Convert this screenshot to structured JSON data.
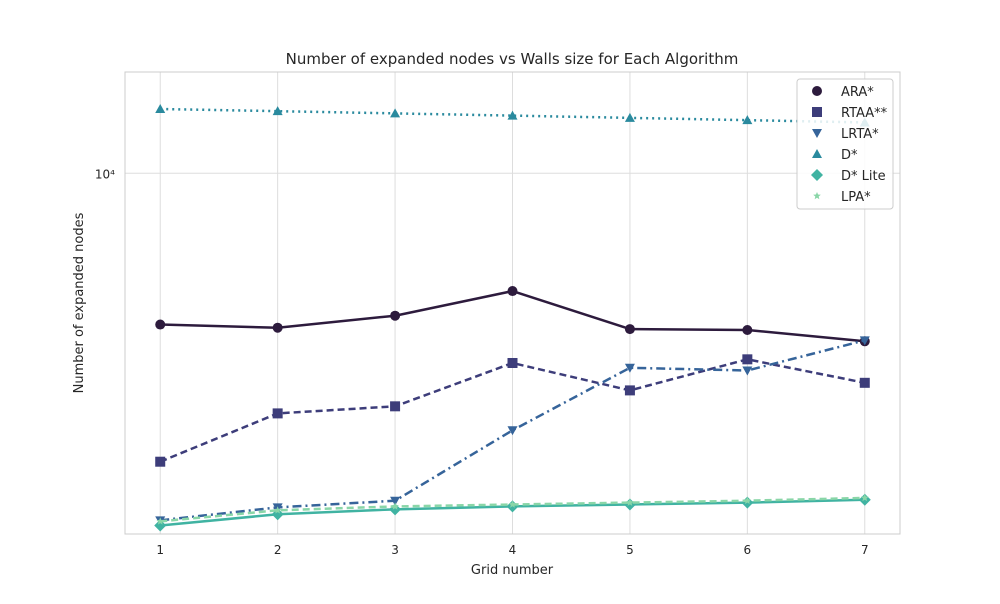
{
  "chart_data": {
    "type": "line",
    "title": "Number of expanded nodes vs Walls size for Each Algorithm",
    "xlabel": "Grid number",
    "ylabel": "Number of expanded nodes",
    "y_scale": "log",
    "y_tick_label": "10⁴",
    "x": [
      1,
      2,
      3,
      4,
      5,
      6,
      7
    ],
    "xlim": [
      0.7,
      7.3
    ],
    "ylim": [
      2200,
      15300
    ],
    "grid": true,
    "legend_position": "top-right",
    "series": [
      {
        "name": "ARA*",
        "marker": "circle",
        "dash": "solid",
        "color": "#2d1b3d",
        "values": [
          5300,
          5230,
          5500,
          6100,
          5200,
          5180,
          4940
        ]
      },
      {
        "name": "RTAA**",
        "marker": "square",
        "dash": "dashed",
        "color": "#3d3d7a",
        "values": [
          2980,
          3650,
          3760,
          4510,
          4020,
          4580,
          4150
        ]
      },
      {
        "name": "LRTA*",
        "marker": "triangle-down",
        "dash": "dashdot",
        "color": "#36649a",
        "values": [
          2330,
          2460,
          2530,
          3400,
          4420,
          4370,
          4960
        ]
      },
      {
        "name": "D*",
        "marker": "triangle-up",
        "dash": "dotted",
        "color": "#2a8a9e",
        "values": [
          13100,
          12980,
          12860,
          12740,
          12620,
          12500,
          12380
        ]
      },
      {
        "name": "D* Lite",
        "marker": "diamond",
        "dash": "solid",
        "color": "#40b3a2",
        "values": [
          2280,
          2390,
          2440,
          2470,
          2490,
          2510,
          2540
        ]
      },
      {
        "name": "LPA*",
        "marker": "star",
        "dash": "dashed",
        "color": "#8ad6a8",
        "values": [
          2320,
          2430,
          2470,
          2490,
          2510,
          2530,
          2560
        ]
      }
    ]
  }
}
